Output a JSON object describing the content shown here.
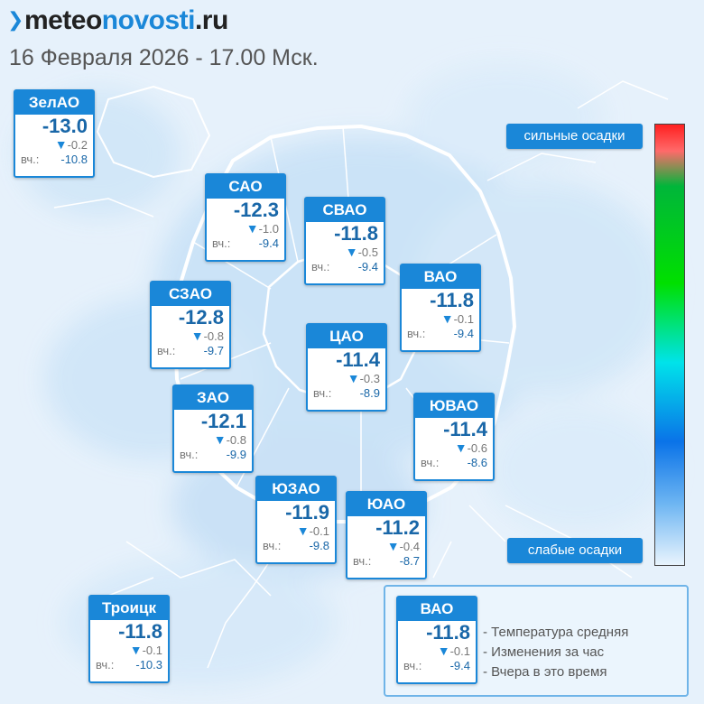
{
  "header": {
    "logo_prefix": "meteo",
    "logo_middle": "novosti",
    "logo_suffix": ".ru",
    "subtitle": "16 Февраля 2026 - 17.00 Мск."
  },
  "card_labels": {
    "yesterday_prefix": "вч.:"
  },
  "districts": [
    {
      "name": "ЗелАО",
      "temp": "-13.0",
      "change": "-0.2",
      "yesterday": "-10.8"
    },
    {
      "name": "САО",
      "temp": "-12.3",
      "change": "-1.0",
      "yesterday": "-9.4"
    },
    {
      "name": "СВАО",
      "temp": "-11.8",
      "change": "-0.5",
      "yesterday": "-9.4"
    },
    {
      "name": "ВАО",
      "temp": "-11.8",
      "change": "-0.1",
      "yesterday": "-9.4"
    },
    {
      "name": "СЗАО",
      "temp": "-12.8",
      "change": "-0.8",
      "yesterday": "-9.7"
    },
    {
      "name": "ЦАО",
      "temp": "-11.4",
      "change": "-0.3",
      "yesterday": "-8.9"
    },
    {
      "name": "ЗАО",
      "temp": "-12.1",
      "change": "-0.8",
      "yesterday": "-9.9"
    },
    {
      "name": "ЮВАО",
      "temp": "-11.4",
      "change": "-0.6",
      "yesterday": "-8.6"
    },
    {
      "name": "ЮЗАО",
      "temp": "-11.9",
      "change": "-0.1",
      "yesterday": "-9.8"
    },
    {
      "name": "ЮАО",
      "temp": "-11.2",
      "change": "-0.4",
      "yesterday": "-8.7"
    },
    {
      "name": "Троицк",
      "temp": "-11.8",
      "change": "-0.1",
      "yesterday": "-10.3"
    }
  ],
  "scale": {
    "top_label": "сильные осадки",
    "bottom_label": "слабые осадки",
    "colors": [
      "#ff2020",
      "#00e000",
      "#00e3ea",
      "#0a73e8",
      "#e9f4fd"
    ]
  },
  "legend": {
    "sample": {
      "name": "ВАО",
      "temp": "-11.8",
      "change": "-0.1",
      "yesterday": "-9.4"
    },
    "notes": [
      "- Температура средняя",
      "- Изменения за час",
      "- Вчера в это время"
    ]
  },
  "icons": {
    "change_arrow": "down-triangle-icon"
  }
}
